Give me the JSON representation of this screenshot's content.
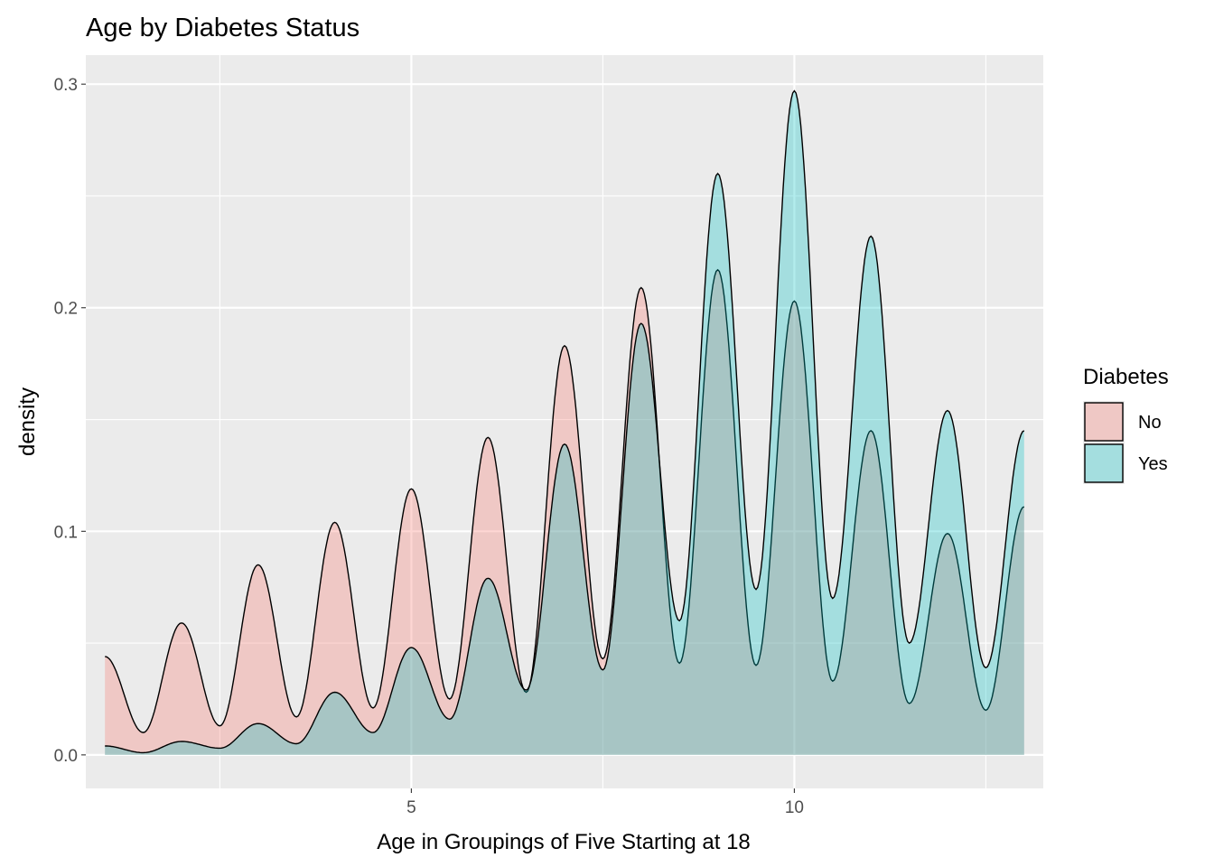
{
  "chart_data": {
    "type": "area",
    "title": "Age by Diabetes Status",
    "xlabel": "Age in Groupings of Five Starting at 18",
    "ylabel": "density",
    "xlim": [
      0.75,
      13.25
    ],
    "ylim": [
      -0.015,
      0.313
    ],
    "x_ticks": [
      5,
      10
    ],
    "x_tick_labels": [
      "5",
      "10"
    ],
    "y_ticks": [
      0.0,
      0.1,
      0.2,
      0.3
    ],
    "y_tick_labels": [
      "0.0",
      "0.1",
      "0.2",
      "0.3"
    ],
    "grid": true,
    "legend": {
      "title": "Diabetes",
      "placement": "right"
    },
    "series": [
      {
        "name": "No",
        "color": "#F8766D",
        "peaks": [
          {
            "x": 1,
            "y": 0.044
          },
          {
            "x": 2,
            "y": 0.059
          },
          {
            "x": 3,
            "y": 0.085
          },
          {
            "x": 4,
            "y": 0.104
          },
          {
            "x": 5,
            "y": 0.119
          },
          {
            "x": 6,
            "y": 0.142
          },
          {
            "x": 7,
            "y": 0.183
          },
          {
            "x": 8,
            "y": 0.209
          },
          {
            "x": 9,
            "y": 0.217
          },
          {
            "x": 10,
            "y": 0.203
          },
          {
            "x": 11,
            "y": 0.145
          },
          {
            "x": 12,
            "y": 0.099
          },
          {
            "x": 13,
            "y": 0.111
          }
        ],
        "troughs": [
          {
            "x": 1.5,
            "y": 0.01
          },
          {
            "x": 2.5,
            "y": 0.013
          },
          {
            "x": 3.5,
            "y": 0.017
          },
          {
            "x": 4.5,
            "y": 0.021
          },
          {
            "x": 5.5,
            "y": 0.025
          },
          {
            "x": 6.5,
            "y": 0.028
          },
          {
            "x": 7.5,
            "y": 0.043
          },
          {
            "x": 8.5,
            "y": 0.041
          },
          {
            "x": 9.5,
            "y": 0.04
          },
          {
            "x": 10.5,
            "y": 0.033
          },
          {
            "x": 11.5,
            "y": 0.023
          },
          {
            "x": 12.5,
            "y": 0.02
          }
        ]
      },
      {
        "name": "Yes",
        "color": "#00BFC4",
        "peaks": [
          {
            "x": 1,
            "y": 0.004
          },
          {
            "x": 2,
            "y": 0.006
          },
          {
            "x": 3,
            "y": 0.014
          },
          {
            "x": 4,
            "y": 0.028
          },
          {
            "x": 5,
            "y": 0.048
          },
          {
            "x": 6,
            "y": 0.079
          },
          {
            "x": 7,
            "y": 0.139
          },
          {
            "x": 8,
            "y": 0.193
          },
          {
            "x": 9,
            "y": 0.26
          },
          {
            "x": 10,
            "y": 0.297
          },
          {
            "x": 11,
            "y": 0.232
          },
          {
            "x": 12,
            "y": 0.154
          },
          {
            "x": 13,
            "y": 0.145
          }
        ],
        "troughs": [
          {
            "x": 1.5,
            "y": 0.001
          },
          {
            "x": 2.5,
            "y": 0.003
          },
          {
            "x": 3.5,
            "y": 0.005
          },
          {
            "x": 4.5,
            "y": 0.01
          },
          {
            "x": 5.5,
            "y": 0.016
          },
          {
            "x": 6.5,
            "y": 0.029
          },
          {
            "x": 7.5,
            "y": 0.038
          },
          {
            "x": 8.5,
            "y": 0.06
          },
          {
            "x": 9.5,
            "y": 0.074
          },
          {
            "x": 10.5,
            "y": 0.07
          },
          {
            "x": 11.5,
            "y": 0.05
          },
          {
            "x": 12.5,
            "y": 0.039
          }
        ]
      }
    ]
  }
}
